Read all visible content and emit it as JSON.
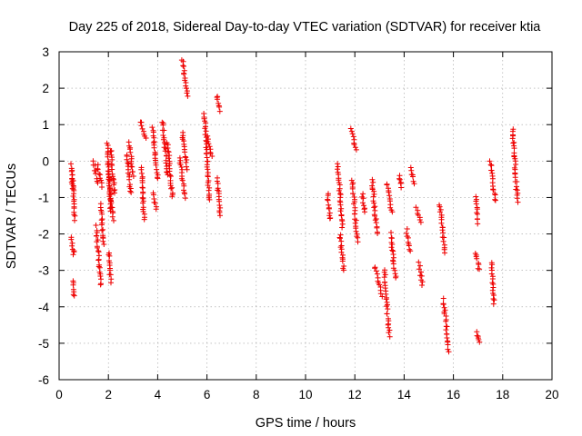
{
  "chart_data": {
    "type": "scatter",
    "title": "Day 225 of 2018, Sidereal Day-to-day VTEC variation (SDTVAR) for receiver ktia",
    "xlabel": "GPS time / hours",
    "ylabel": "SDTVAR / TECUs",
    "xlim": [
      0,
      20
    ],
    "ylim": [
      -6,
      3
    ],
    "xticks": [
      0,
      2,
      4,
      6,
      8,
      10,
      12,
      14,
      16,
      18,
      20
    ],
    "yticks": [
      -6,
      -5,
      -4,
      -3,
      -2,
      -1,
      0,
      1,
      2,
      3
    ],
    "marker": "+",
    "color": "#ee0000",
    "grid": true,
    "series": [
      {
        "name": "ktia",
        "segments": [
          [
            0.5,
            0.55,
            -0.1,
            -0.8
          ],
          [
            0.55,
            0.62,
            -0.4,
            -1.6
          ],
          [
            0.5,
            0.6,
            -2.1,
            -2.6
          ],
          [
            0.55,
            0.62,
            -3.3,
            -3.7
          ],
          [
            1.4,
            1.55,
            0.0,
            -0.6
          ],
          [
            1.5,
            1.7,
            -1.8,
            -3.4
          ],
          [
            1.55,
            1.75,
            -0.1,
            -0.7
          ],
          [
            1.7,
            1.8,
            -1.2,
            -2.3
          ],
          [
            1.95,
            2.1,
            0.5,
            -1.4
          ],
          [
            2.0,
            2.2,
            -0.3,
            -1.6
          ],
          [
            2.0,
            2.1,
            -2.5,
            -3.3
          ],
          [
            2.1,
            2.25,
            0.3,
            -0.9
          ],
          [
            2.75,
            2.9,
            0.2,
            -0.9
          ],
          [
            2.85,
            3.0,
            0.5,
            -0.4
          ],
          [
            3.3,
            3.5,
            1.1,
            0.6
          ],
          [
            3.35,
            3.45,
            -0.2,
            -1.6
          ],
          [
            3.8,
            4.0,
            0.9,
            -0.5
          ],
          [
            3.8,
            3.95,
            -0.9,
            -1.3
          ],
          [
            4.2,
            4.4,
            1.1,
            -0.4
          ],
          [
            4.4,
            4.6,
            0.5,
            -1.0
          ],
          [
            4.9,
            5.1,
            0.1,
            -1.0
          ],
          [
            5.0,
            5.2,
            0.8,
            -0.2
          ],
          [
            5.0,
            5.2,
            2.8,
            1.8
          ],
          [
            5.9,
            6.1,
            1.3,
            -1.1
          ],
          [
            6.0,
            6.2,
            0.7,
            0.1
          ],
          [
            6.4,
            6.5,
            1.8,
            1.4
          ],
          [
            6.4,
            6.55,
            -0.5,
            -1.5
          ],
          [
            10.9,
            11.0,
            -0.9,
            -1.6
          ],
          [
            11.3,
            11.5,
            -0.1,
            -1.8
          ],
          [
            11.4,
            11.55,
            -2.0,
            -3.0
          ],
          [
            11.85,
            12.05,
            0.9,
            0.3
          ],
          [
            11.9,
            12.1,
            -0.5,
            -2.2
          ],
          [
            12.3,
            12.4,
            -0.9,
            -1.4
          ],
          [
            12.7,
            12.9,
            -0.5,
            -2.0
          ],
          [
            12.8,
            13.1,
            -2.9,
            -3.7
          ],
          [
            13.2,
            13.4,
            -3.0,
            -4.8
          ],
          [
            13.3,
            13.5,
            -0.6,
            -1.4
          ],
          [
            13.45,
            13.65,
            -2.0,
            -3.2
          ],
          [
            13.8,
            13.9,
            -0.4,
            -0.7
          ],
          [
            14.1,
            14.25,
            -1.9,
            -2.5
          ],
          [
            14.3,
            14.4,
            -0.2,
            -0.6
          ],
          [
            14.5,
            14.7,
            -1.3,
            -1.7
          ],
          [
            14.6,
            14.75,
            -2.8,
            -3.4
          ],
          [
            15.45,
            15.65,
            -1.2,
            -2.5
          ],
          [
            15.6,
            15.8,
            -3.8,
            -5.2
          ],
          [
            16.9,
            17.0,
            -1.0,
            -1.7
          ],
          [
            16.9,
            17.05,
            -2.5,
            -3.0
          ],
          [
            16.95,
            17.05,
            -4.7,
            -5.0
          ],
          [
            17.5,
            17.7,
            0.0,
            -1.1
          ],
          [
            17.55,
            17.65,
            -2.8,
            -3.9
          ],
          [
            18.4,
            18.6,
            0.9,
            -1.1
          ]
        ]
      }
    ]
  }
}
